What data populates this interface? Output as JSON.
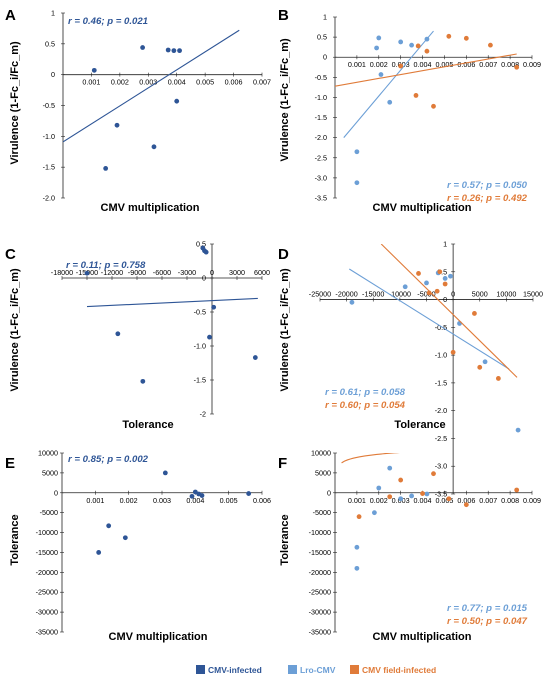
{
  "colors": {
    "cmv_infected": "#2e5596",
    "lro_cmv": "#6c9fd6",
    "field_infected": "#e07b39",
    "axis": "#222222"
  },
  "legend": [
    {
      "label": "CMV-infected",
      "color": "#2e5596"
    },
    {
      "label": "Lro-CMV",
      "color": "#6c9fd6"
    },
    {
      "label": "CMV field-infected",
      "color": "#e07b39"
    }
  ],
  "chart_data": [
    {
      "panel": "A",
      "type": "scatter",
      "xlabel": "CMV multiplication",
      "ylabel": "Virulence (1-Fc_i/Fc_m)",
      "xlim": [
        0,
        0.007
      ],
      "ylim": [
        -2.0,
        1.0
      ],
      "x_ticks": [
        0.001,
        0.002,
        0.003,
        0.004,
        0.005,
        0.006,
        0.007
      ],
      "x_tick_labels": [
        "0.001",
        "0.002",
        "0.003",
        "0.004",
        "0.005",
        "0.006",
        "0.007"
      ],
      "y_ticks": [
        -2.0,
        -1.5,
        -1.0,
        -0.5,
        0,
        0.5,
        1
      ],
      "y_tick_labels": [
        "-2.0",
        "-1.5",
        "-1.0",
        "-0.5",
        "0",
        "0.5",
        "1"
      ],
      "series": [
        {
          "key": "cmv_infected",
          "x": [
            0.0011,
            0.0015,
            0.0019,
            0.0028,
            0.0032,
            0.0037,
            0.0039,
            0.0041,
            0.004
          ],
          "y": [
            0.07,
            -1.52,
            -0.82,
            0.44,
            -1.17,
            0.4,
            0.39,
            0.39,
            -0.43
          ],
          "fit": {
            "kind": "linear",
            "x": [
              0,
              0.0062
            ],
            "y": [
              -1.09,
              0.72
            ]
          }
        }
      ],
      "stats": [
        {
          "text": "r = 0.46; p = 0.021",
          "key": "cmv_infected",
          "pos": "top-left"
        }
      ]
    },
    {
      "panel": "B",
      "type": "scatter",
      "xlabel": "CMV multiplication",
      "ylabel": "Virulence (1-Fc_i/Fc_m)",
      "xlim": [
        0,
        0.009
      ],
      "ylim": [
        -3.5,
        1.0
      ],
      "x_ticks": [
        0.001,
        0.002,
        0.003,
        0.004,
        0.005,
        0.006,
        0.007,
        0.008,
        0.009
      ],
      "x_tick_labels": [
        "0.001",
        "0.002",
        "0.003",
        "0.004",
        "0.005",
        "0.006",
        "0.007",
        "0.008",
        "0.009"
      ],
      "y_ticks": [
        -3.5,
        -3.0,
        -2.5,
        -2.0,
        -1.5,
        -1.0,
        -0.5,
        0,
        0.5,
        1
      ],
      "y_tick_labels": [
        "-3.5",
        "-3.0",
        "-2.5",
        "-2.0",
        "-1.5",
        "-1.0",
        "-0.5",
        "0",
        "0.5",
        "1"
      ],
      "series": [
        {
          "key": "lro_cmv",
          "x": [
            0.001,
            0.001,
            0.0019,
            0.002,
            0.0021,
            0.0025,
            0.003,
            0.0035,
            0.0042
          ],
          "y": [
            -2.35,
            -3.12,
            0.23,
            0.48,
            -0.43,
            -1.12,
            0.38,
            0.3,
            0.45
          ],
          "fit": {
            "kind": "linear",
            "x": [
              0.0004,
              0.0045
            ],
            "y": [
              -2.0,
              0.65
            ]
          }
        },
        {
          "key": "field_infected",
          "x": [
            0.003,
            0.0037,
            0.0038,
            0.0042,
            0.0045,
            0.0052,
            0.006,
            0.0071,
            0.0083
          ],
          "y": [
            -0.22,
            -0.95,
            0.28,
            0.15,
            -1.22,
            0.52,
            0.47,
            0.3,
            -0.25
          ],
          "fit": {
            "kind": "linear",
            "x": [
              0,
              0.0083
            ],
            "y": [
              -0.72,
              0.08
            ]
          }
        }
      ],
      "stats": [
        {
          "text": "r = 0.57; p = 0.050",
          "key": "lro_cmv",
          "pos": "bottom-right-1"
        },
        {
          "text": "r = 0.26; p = 0.492",
          "key": "field_infected",
          "pos": "bottom-right-2"
        }
      ]
    },
    {
      "panel": "C",
      "type": "scatter",
      "xlabel": "Tolerance",
      "ylabel": "Virulence (1-Fc_i/Fc_m)",
      "xlim": [
        -18000,
        6000
      ],
      "ylim": [
        -2.0,
        0.5
      ],
      "x_ticks": [
        -18000,
        -15000,
        -12000,
        -9000,
        -6000,
        -3000,
        0,
        3000,
        6000
      ],
      "x_tick_labels": [
        "-18000",
        "-15000",
        "-12000",
        "-9000",
        "-6000",
        "-3000",
        "0",
        "3000",
        "6000"
      ],
      "y_ticks": [
        -2.0,
        -1.5,
        -1.0,
        -0.5,
        0,
        0.5
      ],
      "y_tick_labels": [
        "-2",
        "-1.5",
        "-1.0",
        "-0.5",
        "0",
        "0.5"
      ],
      "series": [
        {
          "key": "cmv_infected",
          "x": [
            -15000,
            -11300,
            -8300,
            -1100,
            -900,
            -700,
            -300,
            200,
            5200
          ],
          "y": [
            0.07,
            -0.82,
            -1.52,
            0.44,
            0.4,
            0.38,
            -0.87,
            -0.43,
            -1.17
          ],
          "fit": {
            "kind": "linear",
            "x": [
              -15000,
              5500
            ],
            "y": [
              -0.42,
              -0.3
            ]
          }
        }
      ],
      "stats": [
        {
          "text": "r = 0.11; p = 0.758",
          "key": "cmv_infected",
          "pos": "top-left"
        }
      ]
    },
    {
      "panel": "D",
      "type": "scatter",
      "xlabel": "Tolerance",
      "ylabel": "Virulence (1-Fc_i/Fc_m)",
      "xlim": [
        -25000,
        15000
      ],
      "ylim": [
        -3.5,
        1.0
      ],
      "x_ticks": [
        -25000,
        -20000,
        -15000,
        -10000,
        -5000,
        0,
        5000,
        10000,
        15000
      ],
      "x_tick_labels": [
        "-25000",
        "-20000",
        "-15000",
        "-10000",
        "-5000",
        "0",
        "5000",
        "10000",
        "15000"
      ],
      "y_ticks": [
        -3.5,
        -3.0,
        -2.5,
        -2.0,
        -1.5,
        -1.0,
        -0.5,
        0,
        0.5,
        1
      ],
      "y_tick_labels": [
        "-3.5",
        "-3.0",
        "-2.5",
        "-2.0",
        "-1.5",
        "-1.0",
        "-0.5",
        "0",
        "0.5",
        "1"
      ],
      "series": [
        {
          "key": "lro_cmv",
          "x": [
            -19000,
            -9000,
            -5000,
            -2800,
            -1500,
            -500,
            1200,
            6000,
            12200
          ],
          "y": [
            -0.05,
            0.23,
            0.3,
            0.48,
            0.38,
            0.42,
            -0.43,
            -1.12,
            -2.35
          ],
          "fit": {
            "kind": "linear",
            "x": [
              -19500,
              10500
            ],
            "y": [
              0.55,
              -1.25
            ]
          }
        },
        {
          "key": "field_infected",
          "x": [
            -6500,
            -4500,
            -3000,
            -2500,
            -1500,
            0,
            4000,
            5000,
            8500
          ],
          "y": [
            0.47,
            0.12,
            0.15,
            0.5,
            0.28,
            -0.95,
            -0.25,
            -1.22,
            -1.42
          ],
          "fit": {
            "kind": "linear",
            "x": [
              -13500,
              12000
            ],
            "y": [
              1.0,
              -1.4
            ]
          }
        }
      ],
      "stats": [
        {
          "text": "r = 0.61; p = 0.058",
          "key": "lro_cmv",
          "pos": "bottom-left-1"
        },
        {
          "text": "r = 0.60; p = 0.054",
          "key": "field_infected",
          "pos": "bottom-left-2"
        }
      ]
    },
    {
      "panel": "E",
      "type": "scatter",
      "xlabel": "CMV multiplication",
      "ylabel": "Tolerance",
      "xlim": [
        0,
        0.006
      ],
      "ylim": [
        -35000,
        10000
      ],
      "x_ticks": [
        0.001,
        0.002,
        0.003,
        0.004,
        0.005,
        0.006
      ],
      "x_tick_labels": [
        "0.001",
        "0.002",
        "0.003",
        "0.004",
        "0.005",
        "0.006"
      ],
      "y_ticks": [
        -35000,
        -30000,
        -25000,
        -20000,
        -15000,
        -10000,
        -5000,
        0,
        5000,
        10000
      ],
      "y_tick_labels": [
        "-35000",
        "-30000",
        "-25000",
        "-20000",
        "-15000",
        "-10000",
        "-5000",
        "0",
        "5000",
        "10000"
      ],
      "series": [
        {
          "key": "cmv_infected",
          "x": [
            0.0011,
            0.0014,
            0.0019,
            0.0031,
            0.0039,
            0.004,
            0.0041,
            0.0042,
            0.0056
          ],
          "y": [
            -15000,
            -8300,
            -11300,
            5000,
            -900,
            200,
            -300,
            -700,
            -200
          ],
          "fit": {
            "kind": "log",
            "a": 45220,
            "b": 5840,
            "xmin": 0.0003,
            "xmax": 0.006
          }
        }
      ],
      "stats": [
        {
          "text": "r = 0.85; p = 0.002",
          "key": "cmv_infected",
          "pos": "top-left"
        }
      ]
    },
    {
      "panel": "F",
      "type": "scatter",
      "xlabel": "CMV multiplication",
      "ylabel": "Tolerance",
      "xlim": [
        0,
        0.009
      ],
      "ylim": [
        -35000,
        10000
      ],
      "x_ticks": [
        0.001,
        0.002,
        0.003,
        0.004,
        0.005,
        0.006,
        0.007,
        0.008,
        0.009
      ],
      "x_tick_labels": [
        "0.001",
        "0.002",
        "0.003",
        "0.004",
        "0.005",
        "0.006",
        "0.007",
        "0.008",
        "0.009"
      ],
      "y_ticks": [
        -35000,
        -30000,
        -25000,
        -20000,
        -15000,
        -10000,
        -5000,
        0,
        5000,
        10000
      ],
      "y_tick_labels": [
        "-35000",
        "-30000",
        "-25000",
        "-20000",
        "-15000",
        "-10000",
        "-5000",
        "0",
        "5000",
        "10000"
      ],
      "series": [
        {
          "key": "lro_cmv",
          "x": [
            0.001,
            0.001,
            0.0018,
            0.002,
            0.0025,
            0.003,
            0.0035,
            0.0042
          ],
          "y": [
            -13700,
            -19000,
            -5000,
            1200,
            6200,
            -1500,
            -800,
            -300
          ],
          "fit": {
            "kind": "log",
            "a": 54000,
            "b": 7980,
            "xmin": 0.00065,
            "xmax": 0.0048
          }
        },
        {
          "key": "field_infected",
          "x": [
            0.0011,
            0.0025,
            0.003,
            0.004,
            0.0045,
            0.0052,
            0.006,
            0.0083
          ],
          "y": [
            -6000,
            -1000,
            3200,
            -200,
            4800,
            -1500,
            -3000,
            700
          ],
          "fit": {
            "kind": "log",
            "a": 8900,
            "b": 1140,
            "xmin": 0.0003,
            "xmax": 0.0083
          }
        }
      ],
      "stats": [
        {
          "text": "r = 0.77; p = 0.015",
          "key": "lro_cmv",
          "pos": "bottom-right-1"
        },
        {
          "text": "r = 0.50; p = 0.047",
          "key": "field_infected",
          "pos": "bottom-right-2"
        }
      ]
    }
  ]
}
